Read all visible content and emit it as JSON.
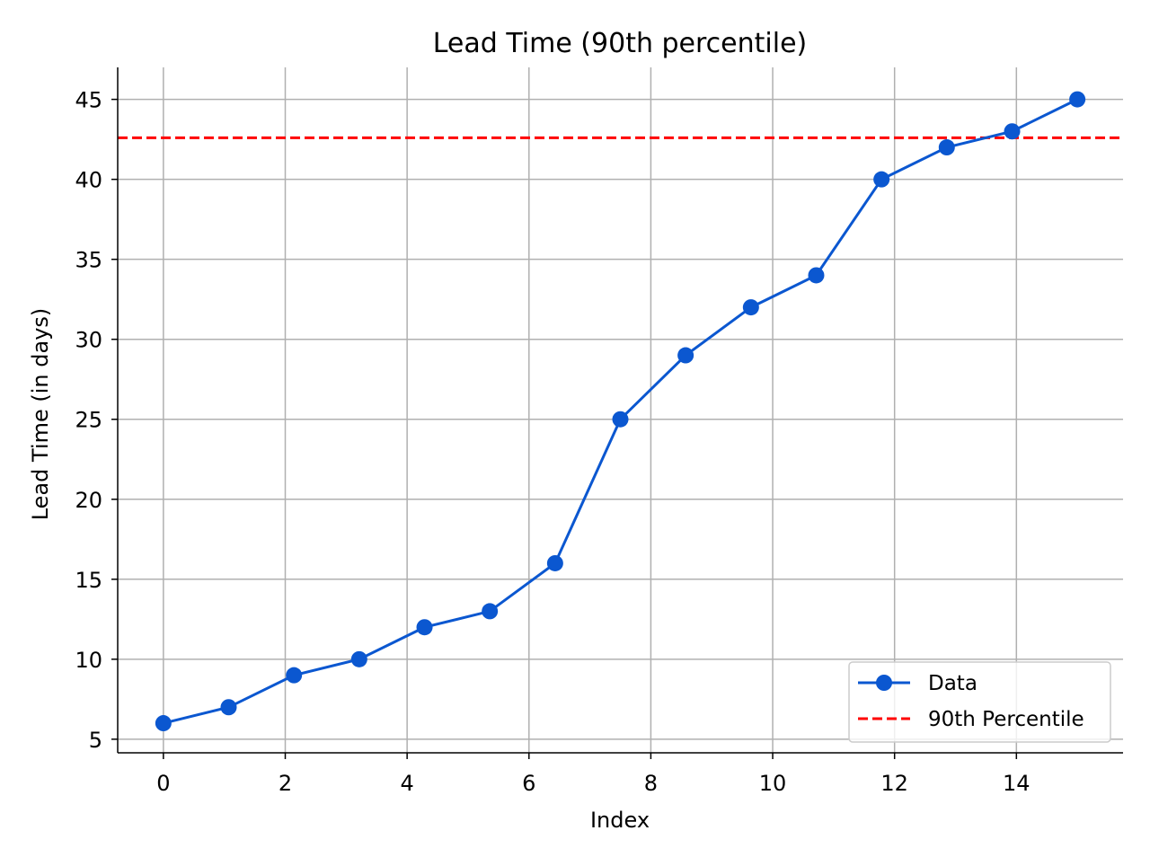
{
  "chart_data": {
    "type": "line",
    "title": "Lead Time (90th percentile)",
    "xlabel": "Index",
    "ylabel": "Lead Time (in days)",
    "xlim": [
      -0.75,
      15.75
    ],
    "ylim": [
      4.15,
      47.0
    ],
    "xticks": [
      0,
      2,
      4,
      6,
      8,
      10,
      12,
      14
    ],
    "yticks": [
      5,
      10,
      15,
      20,
      25,
      30,
      35,
      40,
      45
    ],
    "grid": true,
    "legend_position": "lower-right",
    "series": [
      {
        "name": "Data",
        "color": "#0b57d0",
        "marker": "circle",
        "x": [
          0,
          1.071,
          2.143,
          3.214,
          4.286,
          5.357,
          6.429,
          7.5,
          8.571,
          9.643,
          10.714,
          11.786,
          12.857,
          13.929,
          15
        ],
        "y": [
          6,
          7,
          9,
          10,
          12,
          13,
          16,
          25,
          29,
          32,
          34,
          40,
          42,
          43,
          45
        ]
      }
    ],
    "reference_lines": [
      {
        "name": "90th Percentile",
        "orientation": "horizontal",
        "value": 42.6,
        "color": "#ff0000",
        "style": "dashed"
      }
    ]
  }
}
